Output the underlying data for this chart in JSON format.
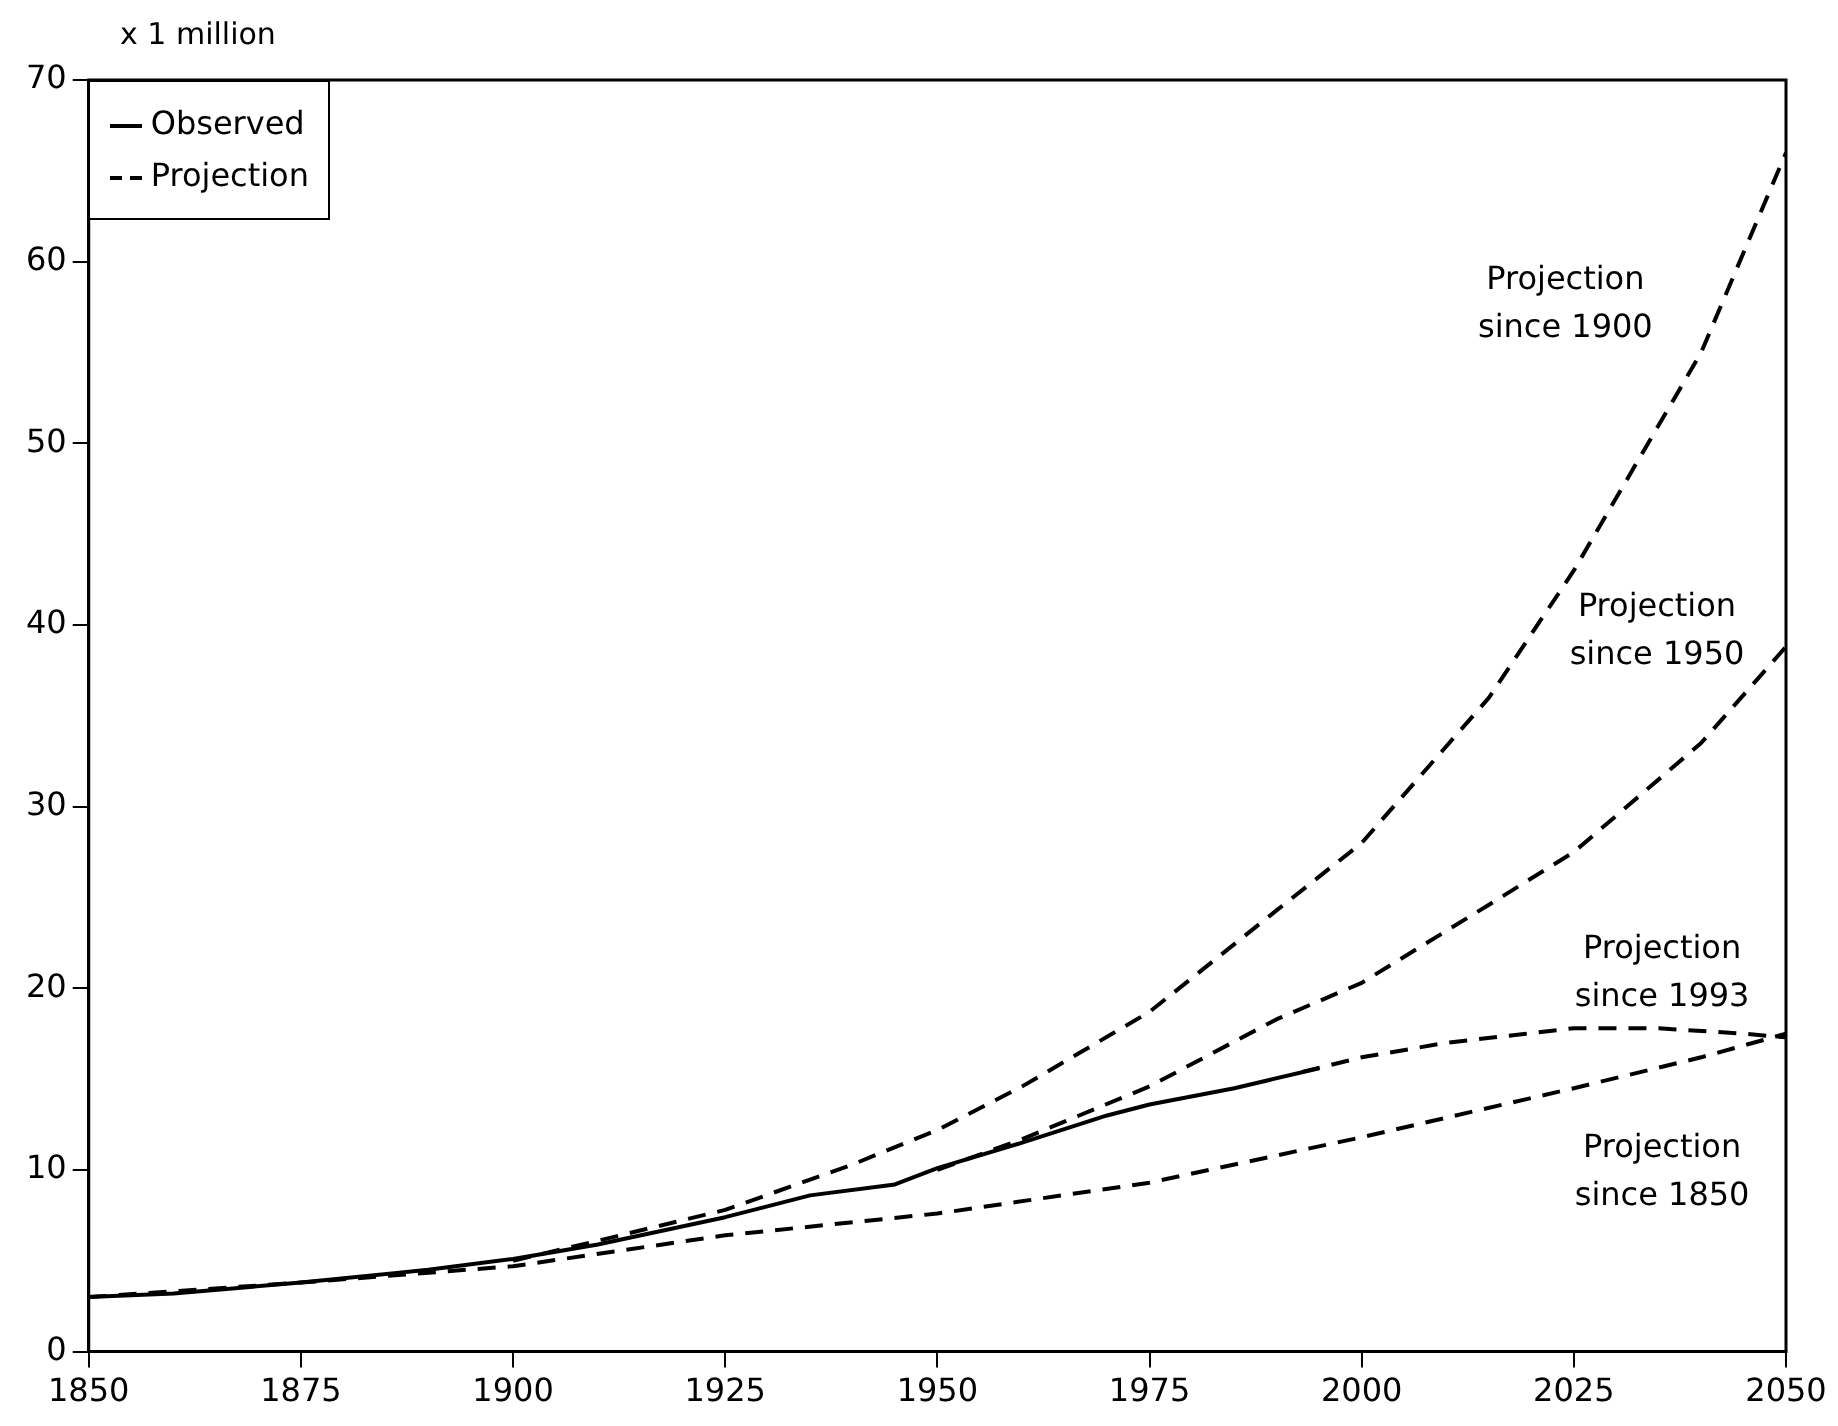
{
  "chart_data": {
    "type": "line",
    "ylabel": "x 1 million",
    "xlim": [
      1850,
      2050
    ],
    "xticks": [
      1850,
      1875,
      1900,
      1925,
      1950,
      1975,
      2000,
      2025,
      2050
    ],
    "ylim": [
      0,
      70
    ],
    "yticks": [
      0,
      10,
      20,
      30,
      40,
      50,
      60,
      70
    ],
    "grid": false,
    "legend": "top left",
    "marker": "none",
    "series": [
      {
        "name": "Observed",
        "color": "#000000",
        "line_style": "solid",
        "x": [
          1850,
          1860,
          1875,
          1890,
          1900,
          1910,
          1925,
          1935,
          1945,
          1950,
          1960,
          1970,
          1975,
          1985,
          1995
        ],
        "values": [
          3.0,
          3.2,
          3.8,
          4.5,
          5.1,
          5.9,
          7.4,
          8.6,
          9.2,
          10.1,
          11.5,
          13.0,
          13.6,
          14.5,
          15.6
        ]
      },
      {
        "name": "Projection",
        "color": "#000000",
        "line_style": "dashed",
        "x": [
          1900,
          1910,
          1925,
          1940,
          1950,
          1960,
          1975,
          1990,
          2000,
          2015,
          2025,
          2040,
          2050
        ],
        "values": [
          5.0,
          6.1,
          7.8,
          10.3,
          12.2,
          14.6,
          18.7,
          24.3,
          28.0,
          36.0,
          43.0,
          55.0,
          66.0
        ]
      },
      {
        "color": "#000000",
        "line_style": "dashed",
        "x": [
          1950,
          1960,
          1975,
          1990,
          2000,
          2015,
          2025,
          2040,
          2050
        ],
        "values": [
          10.0,
          11.7,
          14.6,
          18.3,
          20.3,
          24.6,
          27.5,
          33.5,
          38.8
        ]
      },
      {
        "color": "#000000",
        "line_style": "dashed",
        "x": [
          1993,
          2000,
          2010,
          2025,
          2035,
          2045,
          2050
        ],
        "values": [
          15.4,
          16.2,
          17.0,
          17.8,
          17.8,
          17.5,
          17.3
        ]
      },
      {
        "color": "#000000",
        "line_style": "dashed",
        "x": [
          1850,
          1875,
          1900,
          1925,
          1950,
          1975,
          2000,
          2025,
          2040,
          2050
        ],
        "values": [
          3.0,
          3.8,
          4.7,
          6.4,
          7.6,
          9.3,
          11.8,
          14.5,
          16.2,
          17.5
        ]
      }
    ],
    "annotations": [
      "Projection\nsince 1900",
      "Projection\nsince 1950",
      "Projection\nsince 1993",
      "Projection\nsince 1850"
    ]
  }
}
